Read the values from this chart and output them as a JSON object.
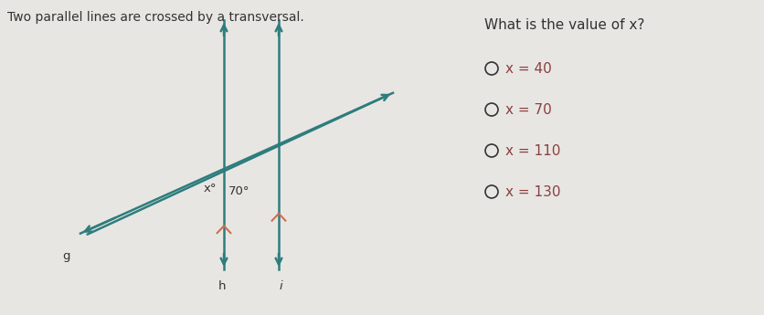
{
  "title_left": "Two parallel lines are crossed by a transversal.",
  "title_right": "What is the value of x?",
  "choices": [
    "x = 40",
    "x = 70",
    "x = 110",
    "x = 130"
  ],
  "angle_70_label": "70°",
  "angle_x_label": "x°",
  "line_g_label": "g",
  "line_h_label": "h",
  "line_i_label": "i",
  "bg_color": "#e8e6e3",
  "line_color": "#2e7d7d",
  "tick_color": "#c87050",
  "text_color": "#333333",
  "choice_text_color": "#8b4040",
  "fig_width": 8.37,
  "fig_height": 3.45
}
